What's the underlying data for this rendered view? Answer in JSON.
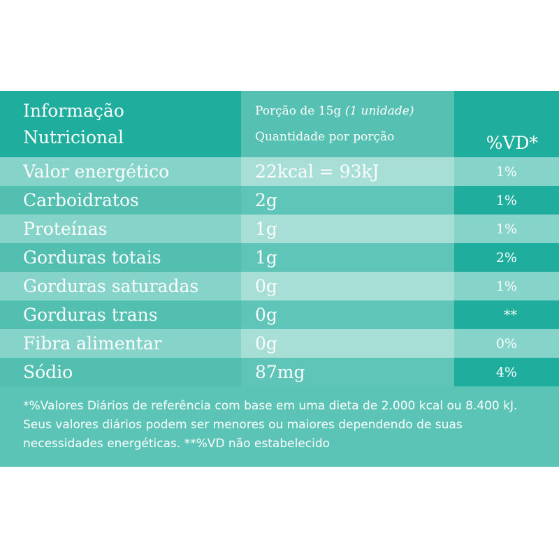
{
  "header": {
    "title_line1": "Informação",
    "title_line2": "Nutricional",
    "serving_label": "Porção de 15g",
    "serving_unit": "(1 unidade)",
    "quantity_label": "Quantidade por porção",
    "vd_label": "%VD*"
  },
  "rows": [
    {
      "nutrient": "Valor energético",
      "amount": "22kcal = 93kJ",
      "vd": "1%"
    },
    {
      "nutrient": "Carboidratos",
      "amount": "2g",
      "vd": "1%"
    },
    {
      "nutrient": "Proteínas",
      "amount": "1g",
      "vd": "1%"
    },
    {
      "nutrient": "Gorduras totais",
      "amount": "1g",
      "vd": "2%"
    },
    {
      "nutrient": "Gorduras saturadas",
      "amount": "0g",
      "vd": "1%"
    },
    {
      "nutrient": "Gorduras trans",
      "amount": "0g",
      "vd": "**"
    },
    {
      "nutrient": "Fibra alimentar",
      "amount": "0g",
      "vd": "0%"
    },
    {
      "nutrient": "Sódio",
      "amount": "87mg",
      "vd": "4%"
    }
  ],
  "footnote": "*%Valores Diários de referência com base em uma dieta de 2.000 kcal ou 8.400 kJ. Seus valores diários podem ser menores ou maiores dependendo de suas necessidades energéticas. **%VD não estabelecido",
  "colors": {
    "panel": "#5cc4b6",
    "dark_band": "#1fae9e",
    "light_band": "#86d3c9",
    "light_mid": "#a7ded6"
  }
}
